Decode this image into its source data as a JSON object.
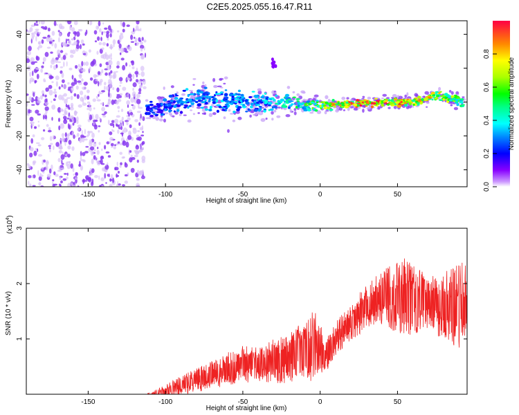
{
  "title": "C2E5.2025.055.16.47.R11",
  "colors": {
    "background": "#ffffff",
    "axis": "#000000",
    "snr_line": "#ee2222",
    "scatter_purple": "#8a3cf0",
    "scatter_light": "#d9c2f8"
  },
  "chart_data": [
    {
      "type": "heatmap",
      "xlabel": "Height of straight line (km)",
      "ylabel": "Frequency (Hz)",
      "xlim": [
        -190,
        95
      ],
      "ylim": [
        -50,
        48
      ],
      "x_ticks": [
        -150,
        -100,
        -50,
        0,
        50
      ],
      "x_tick_labels": [
        "-150",
        "-100",
        "-50",
        "0",
        "50"
      ],
      "y_ticks": [
        -40,
        -20,
        0,
        20,
        40
      ],
      "y_tick_labels": [
        "-40",
        "-20",
        "0",
        "20",
        "40"
      ],
      "noise_region": {
        "x": [
          -190,
          -113
        ],
        "y": [
          -50,
          48
        ]
      },
      "band_center_hz": [
        {
          "x": -112,
          "y": -4
        },
        {
          "x": -105,
          "y": -4
        },
        {
          "x": -95,
          "y": -1
        },
        {
          "x": -80,
          "y": 2
        },
        {
          "x": -65,
          "y": 1
        },
        {
          "x": -50,
          "y": 0
        },
        {
          "x": -35,
          "y": 0
        },
        {
          "x": -20,
          "y": 0
        },
        {
          "x": -8,
          "y": -2
        },
        {
          "x": 0,
          "y": -2
        },
        {
          "x": 20,
          "y": -1
        },
        {
          "x": 40,
          "y": 0
        },
        {
          "x": 60,
          "y": 0
        },
        {
          "x": 70,
          "y": 2
        },
        {
          "x": 75,
          "y": 4
        },
        {
          "x": 85,
          "y": 2
        },
        {
          "x": 93,
          "y": 0
        }
      ],
      "band_halfwidth_hz": [
        {
          "x": -112,
          "y": 5
        },
        {
          "x": -90,
          "y": 9
        },
        {
          "x": -60,
          "y": 10
        },
        {
          "x": -40,
          "y": 8
        },
        {
          "x": -10,
          "y": 5
        },
        {
          "x": 20,
          "y": 3
        },
        {
          "x": 60,
          "y": 3
        },
        {
          "x": 93,
          "y": 4
        }
      ],
      "band_amplitude": [
        {
          "x": -112,
          "y": 0.25
        },
        {
          "x": -80,
          "y": 0.35
        },
        {
          "x": -40,
          "y": 0.35
        },
        {
          "x": -10,
          "y": 0.55
        },
        {
          "x": 10,
          "y": 0.85
        },
        {
          "x": 40,
          "y": 0.95
        },
        {
          "x": 65,
          "y": 0.85
        },
        {
          "x": 80,
          "y": 0.75
        },
        {
          "x": 93,
          "y": 0.5
        }
      ],
      "secondary_blob": {
        "x": -30,
        "y": 22,
        "amplitude": 0.1
      },
      "colorbar": {
        "label": "Normalized spectral amplitude",
        "range": [
          0,
          1
        ],
        "ticks": [
          0.0,
          0.2,
          0.4,
          0.6,
          0.8
        ],
        "tick_labels": [
          "0.0",
          "0.2",
          "0.4",
          "0.6",
          "0.8"
        ]
      }
    },
    {
      "type": "line",
      "xlabel": "Height of straight line (km)",
      "ylabel": "SNR (10 * v/v)",
      "scale_label": "(x10",
      "scale_exponent": "4",
      "xlim": [
        -190,
        95
      ],
      "ylim": [
        0,
        30000
      ],
      "x_ticks": [
        -150,
        -100,
        -50,
        0,
        50
      ],
      "x_tick_labels": [
        "-150",
        "-100",
        "-50",
        "0",
        "50"
      ],
      "y_ticks": [
        10000,
        20000,
        30000
      ],
      "y_tick_labels": [
        "1",
        "2",
        "3"
      ],
      "envelope": {
        "x": [
          -190,
          -115,
          -110,
          -100,
          -90,
          -80,
          -70,
          -60,
          -50,
          -40,
          -30,
          -20,
          -10,
          -5,
          0,
          2,
          5,
          10,
          20,
          30,
          40,
          50,
          55,
          60,
          70,
          80,
          90,
          95
        ],
        "mean": [
          0,
          0,
          0,
          600,
          1500,
          2500,
          3500,
          4500,
          5500,
          5500,
          6000,
          6500,
          8000,
          8500,
          9000,
          6000,
          7500,
          10000,
          13000,
          16000,
          17500,
          17500,
          18000,
          17000,
          16500,
          16000,
          16000,
          16000
        ],
        "amp": [
          0,
          50,
          300,
          1200,
          1800,
          2200,
          2500,
          3000,
          3500,
          3500,
          4000,
          4500,
          5500,
          6500,
          5500,
          3000,
          3000,
          3000,
          3500,
          4000,
          5000,
          6500,
          7500,
          6500,
          5000,
          6000,
          8000,
          8000
        ]
      }
    }
  ]
}
